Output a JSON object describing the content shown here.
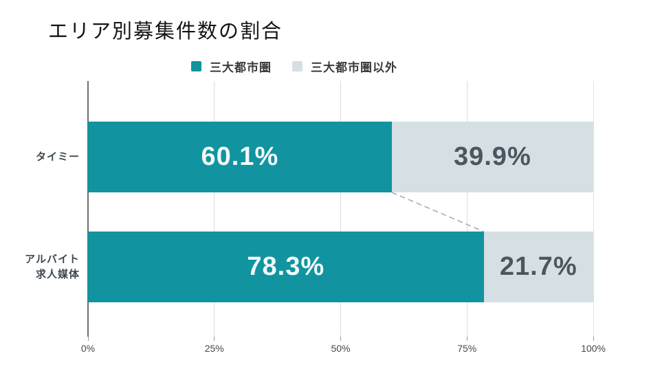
{
  "page": {
    "background": "#ffffff"
  },
  "chart_data": {
    "type": "bar",
    "orientation": "horizontal",
    "stacked": true,
    "title": "エリア別募集件数の割合",
    "categories": [
      {
        "lines": [
          "タイミー"
        ]
      },
      {
        "lines": [
          "アルバイト",
          "求人媒体"
        ]
      }
    ],
    "series": [
      {
        "name": "三大都市圏",
        "color": "#11949f",
        "label_color": "#f2fafb",
        "values": [
          60.1,
          78.3
        ]
      },
      {
        "name": "三大都市圏以外",
        "color": "#d5e0e4",
        "label_color": "#4d565e",
        "values": [
          39.9,
          21.7
        ]
      }
    ],
    "value_suffix": "%",
    "xlim": [
      0,
      100
    ],
    "x_ticks": [
      {
        "label": "0%",
        "pct": 0
      },
      {
        "label": "25%",
        "pct": 25
      },
      {
        "label": "50%",
        "pct": 50
      },
      {
        "label": "75%",
        "pct": 75
      },
      {
        "label": "100%",
        "pct": 100
      }
    ],
    "legend_position": "top",
    "grid": "vertical",
    "connector": {
      "between_rows": [
        0,
        1
      ],
      "along_series": 0,
      "style": "dashed"
    }
  },
  "colors": {
    "axis_line": "#6e6e6e",
    "gridline": "#dcdcdc",
    "gridline_last": "#e4e4e4",
    "tick": "#9a9a9a",
    "tick_label": "#474747",
    "category_label": "#3d474f",
    "title": "#141414",
    "legend_label": "#3a3a3a",
    "connector": "#acacac"
  }
}
